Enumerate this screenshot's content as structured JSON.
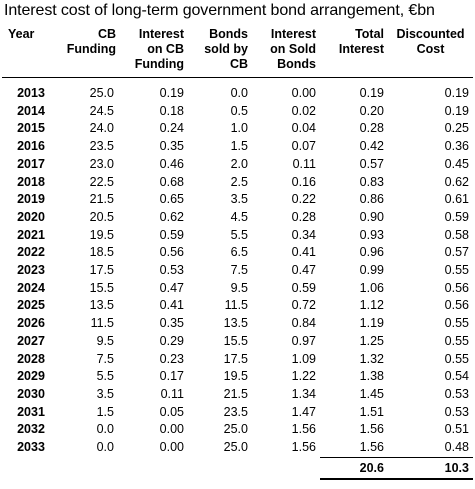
{
  "title": "Interest cost of long-term government bond arrangement, €bn",
  "headers": [
    [
      "Year"
    ],
    [
      "CB",
      "Funding"
    ],
    [
      "Interest",
      "on CB",
      "Funding"
    ],
    [
      "Bonds",
      "sold by",
      "CB"
    ],
    [
      "Interest",
      "on Sold",
      "Bonds"
    ],
    [
      "Total",
      "Interest"
    ],
    [
      "Discounted",
      "Cost"
    ]
  ],
  "rows": [
    [
      "2013",
      "25.0",
      "0.19",
      "0.0",
      "0.00",
      "0.19",
      "0.19"
    ],
    [
      "2014",
      "24.5",
      "0.18",
      "0.5",
      "0.02",
      "0.20",
      "0.19"
    ],
    [
      "2015",
      "24.0",
      "0.24",
      "1.0",
      "0.04",
      "0.28",
      "0.25"
    ],
    [
      "2016",
      "23.5",
      "0.35",
      "1.5",
      "0.07",
      "0.42",
      "0.36"
    ],
    [
      "2017",
      "23.0",
      "0.46",
      "2.0",
      "0.11",
      "0.57",
      "0.45"
    ],
    [
      "2018",
      "22.5",
      "0.68",
      "2.5",
      "0.16",
      "0.83",
      "0.62"
    ],
    [
      "2019",
      "21.5",
      "0.65",
      "3.5",
      "0.22",
      "0.86",
      "0.61"
    ],
    [
      "2020",
      "20.5",
      "0.62",
      "4.5",
      "0.28",
      "0.90",
      "0.59"
    ],
    [
      "2021",
      "19.5",
      "0.59",
      "5.5",
      "0.34",
      "0.93",
      "0.58"
    ],
    [
      "2022",
      "18.5",
      "0.56",
      "6.5",
      "0.41",
      "0.96",
      "0.57"
    ],
    [
      "2023",
      "17.5",
      "0.53",
      "7.5",
      "0.47",
      "0.99",
      "0.55"
    ],
    [
      "2024",
      "15.5",
      "0.47",
      "9.5",
      "0.59",
      "1.06",
      "0.56"
    ],
    [
      "2025",
      "13.5",
      "0.41",
      "11.5",
      "0.72",
      "1.12",
      "0.56"
    ],
    [
      "2026",
      "11.5",
      "0.35",
      "13.5",
      "0.84",
      "1.19",
      "0.55"
    ],
    [
      "2027",
      "9.5",
      "0.29",
      "15.5",
      "0.97",
      "1.25",
      "0.55"
    ],
    [
      "2028",
      "7.5",
      "0.23",
      "17.5",
      "1.09",
      "1.32",
      "0.55"
    ],
    [
      "2029",
      "5.5",
      "0.17",
      "19.5",
      "1.22",
      "1.38",
      "0.54"
    ],
    [
      "2030",
      "3.5",
      "0.11",
      "21.5",
      "1.34",
      "1.45",
      "0.53"
    ],
    [
      "2031",
      "1.5",
      "0.05",
      "23.5",
      "1.47",
      "1.51",
      "0.53"
    ],
    [
      "2032",
      "0.0",
      "0.00",
      "25.0",
      "1.56",
      "1.56",
      "0.51"
    ],
    [
      "2033",
      "0.0",
      "0.00",
      "25.0",
      "1.56",
      "1.56",
      "0.48"
    ]
  ],
  "totals": {
    "total_interest": "20.6",
    "discounted_cost": "10.3"
  }
}
